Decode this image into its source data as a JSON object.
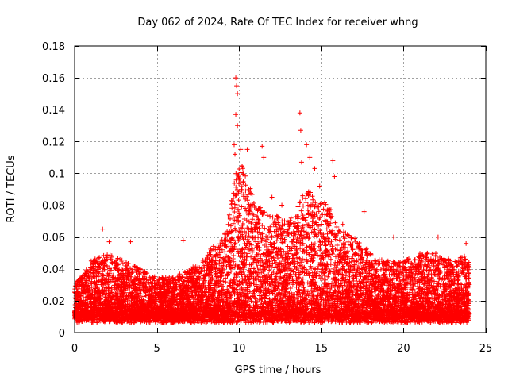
{
  "chart_data": {
    "type": "scatter",
    "title": "Day 062 of 2024, Rate Of TEC Index for receiver whng",
    "xlabel": "GPS time / hours",
    "ylabel": "ROTI / TECUs",
    "xlim": [
      0,
      25
    ],
    "ylim": [
      0,
      0.18
    ],
    "xticks": [
      0,
      5,
      10,
      15,
      20,
      25
    ],
    "xtick_labels": [
      "0",
      "5",
      "10",
      "15",
      "20",
      "25"
    ],
    "yticks": [
      0,
      0.02,
      0.04,
      0.06,
      0.08,
      0.1,
      0.12,
      0.14,
      0.16,
      0.18
    ],
    "ytick_labels": [
      "0",
      "0.02",
      "0.04",
      "0.06",
      "0.08",
      "0.1",
      "0.12",
      "0.14",
      "0.16",
      "0.18"
    ],
    "grid": true,
    "marker": "plus",
    "marker_color": "#ff0000",
    "x_range_data": [
      0,
      24
    ],
    "envelope": {
      "x": [
        0,
        1,
        2,
        3,
        4,
        5,
        6,
        7,
        8,
        9,
        9.5,
        10,
        10.5,
        11,
        12,
        13,
        13.5,
        14,
        15,
        15.5,
        16,
        17,
        18,
        19,
        20,
        21,
        22,
        23,
        24
      ],
      "y": [
        0.03,
        0.045,
        0.05,
        0.045,
        0.04,
        0.035,
        0.035,
        0.04,
        0.05,
        0.06,
        0.085,
        0.11,
        0.1,
        0.08,
        0.075,
        0.07,
        0.08,
        0.09,
        0.085,
        0.08,
        0.065,
        0.06,
        0.05,
        0.045,
        0.045,
        0.05,
        0.05,
        0.045,
        0.05
      ]
    },
    "peaks": [
      {
        "x": 1.7,
        "y": 0.065
      },
      {
        "x": 2.1,
        "y": 0.057
      },
      {
        "x": 3.4,
        "y": 0.057
      },
      {
        "x": 6.6,
        "y": 0.058
      },
      {
        "x": 9.8,
        "y": 0.16
      },
      {
        "x": 9.85,
        "y": 0.155
      },
      {
        "x": 9.9,
        "y": 0.15
      },
      {
        "x": 9.8,
        "y": 0.137
      },
      {
        "x": 9.9,
        "y": 0.13
      },
      {
        "x": 9.7,
        "y": 0.118
      },
      {
        "x": 9.75,
        "y": 0.112
      },
      {
        "x": 10.1,
        "y": 0.115
      },
      {
        "x": 10.5,
        "y": 0.115
      },
      {
        "x": 11.4,
        "y": 0.117
      },
      {
        "x": 11.5,
        "y": 0.11
      },
      {
        "x": 13.7,
        "y": 0.138
      },
      {
        "x": 13.75,
        "y": 0.127
      },
      {
        "x": 13.8,
        "y": 0.107
      },
      {
        "x": 14.1,
        "y": 0.118
      },
      {
        "x": 14.3,
        "y": 0.11
      },
      {
        "x": 14.6,
        "y": 0.103
      },
      {
        "x": 15.7,
        "y": 0.108
      },
      {
        "x": 15.8,
        "y": 0.098
      },
      {
        "x": 14.9,
        "y": 0.092
      },
      {
        "x": 12.6,
        "y": 0.08
      },
      {
        "x": 12.0,
        "y": 0.085
      },
      {
        "x": 16.3,
        "y": 0.068
      },
      {
        "x": 17.6,
        "y": 0.076
      },
      {
        "x": 19.4,
        "y": 0.06
      },
      {
        "x": 22.1,
        "y": 0.06
      },
      {
        "x": 23.8,
        "y": 0.056
      }
    ]
  }
}
